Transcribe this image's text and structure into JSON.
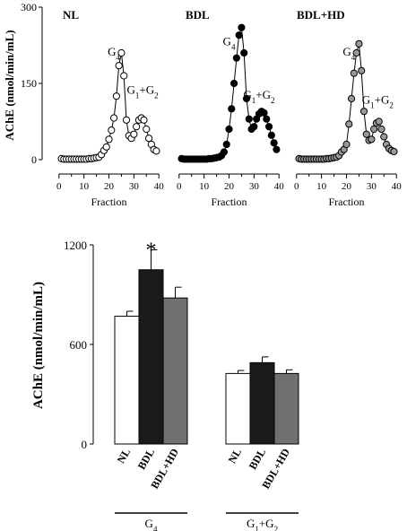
{
  "chart_data": [
    {
      "type": "line",
      "panel": "NL",
      "title": "NL",
      "ylabel": "AChE (nmol/min/mL)",
      "xlabel": "Fraction",
      "ylim": [
        0,
        300
      ],
      "yticks": [
        0,
        150,
        300
      ],
      "xlim": [
        -1,
        41
      ],
      "xticks": [
        0,
        10,
        20,
        30,
        40
      ],
      "marker_fill": "#ffffff",
      "marker_stroke": "#000000",
      "annotations": [
        {
          "text": "G4",
          "sub": "4",
          "x": 22,
          "y": 205
        },
        {
          "text": "G1+G2",
          "x": 33.5,
          "y": 130
        }
      ],
      "x": [
        1,
        2,
        3,
        4,
        5,
        6,
        7,
        8,
        9,
        10,
        11,
        12,
        13,
        14,
        15,
        16,
        17,
        18,
        19,
        20,
        21,
        22,
        23,
        24,
        25,
        26,
        27,
        28,
        29,
        30,
        31,
        32,
        33,
        34,
        35,
        36,
        37,
        38,
        39
      ],
      "y": [
        2,
        1,
        1,
        1,
        1,
        1,
        1,
        1,
        1,
        1,
        1,
        2,
        2,
        3,
        4,
        5,
        10,
        18,
        25,
        40,
        58,
        82,
        125,
        185,
        210,
        165,
        78,
        47,
        42,
        50,
        65,
        78,
        82,
        78,
        60,
        42,
        30,
        20,
        17
      ]
    },
    {
      "type": "line",
      "panel": "BDL",
      "title": "BDL",
      "xlabel": "Fraction",
      "ylim": [
        0,
        300
      ],
      "xlim": [
        -1,
        41
      ],
      "xticks": [
        0,
        10,
        20,
        30,
        40
      ],
      "marker_fill": "#000000",
      "marker_stroke": "#000000",
      "annotations": [
        {
          "text": "G4",
          "x": 20,
          "y": 225
        },
        {
          "text": "G1+G2",
          "x": 32,
          "y": 120
        }
      ],
      "x": [
        1,
        2,
        3,
        4,
        5,
        6,
        7,
        8,
        9,
        10,
        11,
        12,
        13,
        14,
        15,
        16,
        17,
        18,
        19,
        20,
        21,
        22,
        23,
        24,
        25,
        26,
        27,
        28,
        29,
        30,
        31,
        32,
        33,
        34,
        35,
        36,
        37,
        38,
        39
      ],
      "y": [
        2,
        1,
        1,
        1,
        1,
        1,
        1,
        1,
        1,
        1,
        1,
        2,
        2,
        3,
        4,
        5,
        8,
        15,
        30,
        60,
        100,
        150,
        200,
        245,
        260,
        210,
        120,
        80,
        60,
        65,
        80,
        90,
        95,
        92,
        80,
        65,
        48,
        33,
        20
      ]
    },
    {
      "type": "line",
      "panel": "BDL+HD",
      "title": "BDL+HD",
      "xlabel": "Fraction",
      "ylim": [
        0,
        300
      ],
      "xlim": [
        -1,
        41
      ],
      "xticks": [
        0,
        10,
        20,
        30,
        40
      ],
      "marker_fill": "#999999",
      "marker_stroke": "#000000",
      "annotations": [
        {
          "text": "G4",
          "x": 21,
          "y": 205
        },
        {
          "text": "G1+G2",
          "x": 32.5,
          "y": 110
        }
      ],
      "x": [
        1,
        2,
        3,
        4,
        5,
        6,
        7,
        8,
        9,
        10,
        11,
        12,
        13,
        14,
        15,
        16,
        17,
        18,
        19,
        20,
        21,
        22,
        23,
        24,
        25,
        26,
        27,
        28,
        29,
        30,
        31,
        32,
        33,
        34,
        35,
        36,
        37,
        38,
        39
      ],
      "y": [
        2,
        1,
        1,
        1,
        1,
        1,
        1,
        1,
        1,
        1,
        1,
        2,
        2,
        3,
        4,
        5,
        8,
        15,
        20,
        30,
        70,
        120,
        170,
        210,
        228,
        175,
        95,
        50,
        38,
        40,
        60,
        72,
        75,
        60,
        45,
        30,
        22,
        18,
        16
      ]
    },
    {
      "type": "bar",
      "ylabel": "AChE (nmol/min/mL)",
      "ylim": [
        0,
        1200
      ],
      "yticks": [
        0,
        600,
        1200
      ],
      "groups": [
        "G4",
        "G1+G2"
      ],
      "bar_labels": [
        "NL",
        "BDL",
        "BDL+HD"
      ],
      "colors": [
        "#ffffff",
        "#1a1a1a",
        "#707070"
      ],
      "significance": {
        "group": "G4",
        "bar": "BDL",
        "text": "*"
      },
      "series": [
        {
          "name": "NL",
          "values": [
            770,
            425
          ],
          "errors": [
            30,
            18
          ]
        },
        {
          "name": "BDL",
          "values": [
            1050,
            490
          ],
          "errors": [
            120,
            35
          ]
        },
        {
          "name": "BDL+HD",
          "values": [
            880,
            425
          ],
          "errors": [
            65,
            22
          ]
        }
      ]
    }
  ]
}
